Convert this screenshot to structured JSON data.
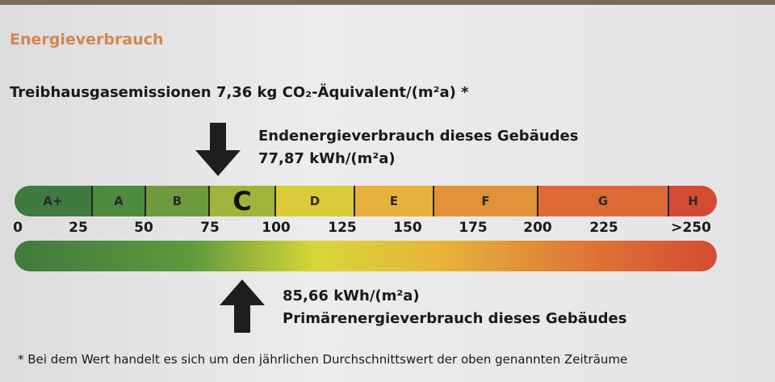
{
  "section_title": "Energieverbrauch",
  "ghg_emissions": "Treibhausgasemissionen 7,36 kg CO₂-Äquivalent/(m²a) *",
  "final_energy": {
    "label": "Endenergieverbrauch dieses Gebäudes",
    "value": "77,87 kWh/(m²a)",
    "value_num": 77.87
  },
  "primary_energy": {
    "label": "Primärenergieverbrauch dieses Gebäudes",
    "value": "85,66 kWh/(m²a)",
    "value_num": 85.66
  },
  "classes": [
    {
      "label": "A+",
      "color": "#3f7a40"
    },
    {
      "label": "A",
      "color": "#4e8a3e"
    },
    {
      "label": "B",
      "color": "#6d9a3c"
    },
    {
      "label": "C",
      "color": "#9fb43a"
    },
    {
      "label": "D",
      "color": "#dccb38"
    },
    {
      "label": "E",
      "color": "#e6b13a"
    },
    {
      "label": "F",
      "color": "#e2923a"
    },
    {
      "label": "G",
      "color": "#dd6a36"
    },
    {
      "label": "H",
      "color": "#d54b32"
    }
  ],
  "scale_ticks": [
    "0",
    "25",
    "50",
    "75",
    "100",
    "125",
    "150",
    "175",
    "200",
    "225",
    ">250"
  ],
  "footnote": "* Bei dem Wert handelt es sich um den jährlichen Durchschnittswert der oben genannten Zeiträume"
}
